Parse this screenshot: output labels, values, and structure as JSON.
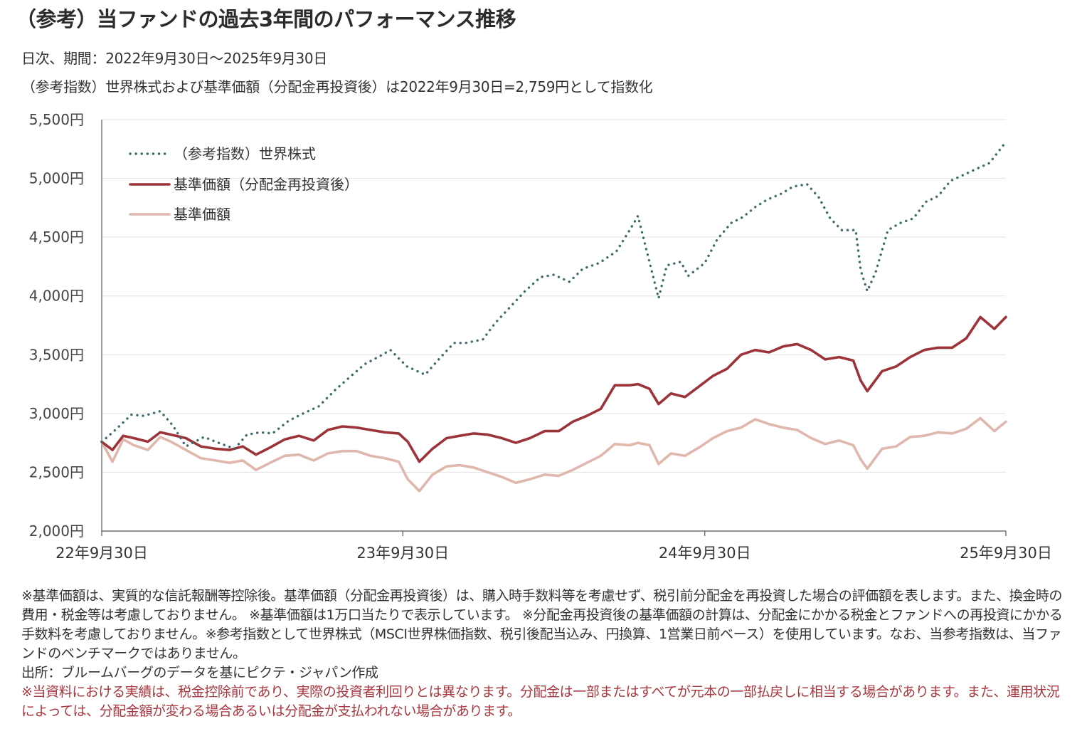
{
  "title": "（参考）当ファンドの過去3年間のパフォーマンス推移",
  "subtitle1": "日次、期間：2022年9月30日～2025年9月30日",
  "subtitle2": "（参考指数）世界株式および基準価額（分配金再投資後）は2022年9月30日=2,759円として指数化",
  "colors": {
    "world_equity": "#3f6b6e",
    "nav_reinvested": "#9b3339",
    "nav": "#dfb7ad",
    "grid": "#e2e2e2",
    "axis": "#555555",
    "note_red": "#a8373f"
  },
  "chart_data": {
    "type": "line",
    "title": "",
    "xlabel": "",
    "ylabel": "",
    "ylim": [
      2000,
      5500
    ],
    "yticks": [
      "2,000円",
      "2,500円",
      "3,000円",
      "3,500円",
      "4,000円",
      "4,500円",
      "5,000円",
      "5,500円"
    ],
    "ytick_values": [
      2000,
      2500,
      3000,
      3500,
      4000,
      4500,
      5000,
      5500
    ],
    "xticks": [
      "22年9月30日",
      "23年9月30日",
      "24年9月30日",
      "25年9月30日"
    ],
    "xtick_values": [
      "2022-09-30",
      "2023-09-30",
      "2024-09-30",
      "2025-09-30"
    ],
    "xlim": [
      "2022-09-30",
      "2025-09-30"
    ],
    "grid": true,
    "legend_position": "top-left",
    "series": [
      {
        "name": "（参考指数）世界株式",
        "style": "dotted",
        "x": [
          "2022-09-30",
          "2022-10-15",
          "2022-11-05",
          "2022-11-20",
          "2022-12-10",
          "2022-12-25",
          "2023-01-10",
          "2023-02-01",
          "2023-02-15",
          "2023-03-10",
          "2023-03-25",
          "2023-04-10",
          "2023-04-25",
          "2023-05-15",
          "2023-06-01",
          "2023-06-20",
          "2023-07-10",
          "2023-07-31",
          "2023-08-15",
          "2023-08-31",
          "2023-09-15",
          "2023-10-05",
          "2023-10-27",
          "2023-11-15",
          "2023-12-01",
          "2023-12-15",
          "2024-01-05",
          "2024-01-20",
          "2024-02-05",
          "2024-02-25",
          "2024-03-15",
          "2024-03-31",
          "2024-04-19",
          "2024-05-05",
          "2024-05-25",
          "2024-06-15",
          "2024-07-01",
          "2024-07-11",
          "2024-07-25",
          "2024-08-05",
          "2024-08-15",
          "2024-09-01",
          "2024-09-10",
          "2024-09-30",
          "2024-10-15",
          "2024-11-01",
          "2024-11-15",
          "2024-12-01",
          "2024-12-15",
          "2025-01-01",
          "2025-01-15",
          "2025-02-01",
          "2025-02-15",
          "2025-03-01",
          "2025-03-15",
          "2025-04-01",
          "2025-04-07",
          "2025-04-15",
          "2025-04-25",
          "2025-05-10",
          "2025-05-25",
          "2025-06-10",
          "2025-06-25",
          "2025-07-10",
          "2025-07-25",
          "2025-08-10",
          "2025-08-25",
          "2025-09-10",
          "2025-09-30"
        ],
        "y": [
          2759,
          2850,
          2990,
          2980,
          3020,
          2900,
          2720,
          2800,
          2760,
          2700,
          2820,
          2840,
          2830,
          2940,
          3000,
          3060,
          3200,
          3330,
          3420,
          3480,
          3540,
          3400,
          3330,
          3480,
          3600,
          3600,
          3630,
          3770,
          3890,
          4040,
          4160,
          4180,
          4120,
          4230,
          4280,
          4380,
          4560,
          4680,
          4290,
          3980,
          4260,
          4290,
          4170,
          4280,
          4480,
          4620,
          4670,
          4760,
          4820,
          4870,
          4930,
          4950,
          4840,
          4660,
          4560,
          4560,
          4220,
          4040,
          4200,
          4560,
          4620,
          4660,
          4800,
          4850,
          4980,
          5030,
          5080,
          5130,
          5310
        ]
      },
      {
        "name": "基準価額（分配金再投資後）",
        "style": "solid",
        "x": [
          "2022-09-30",
          "2022-10-13",
          "2022-10-26",
          "2022-11-08",
          "2022-11-25",
          "2022-12-10",
          "2022-12-23",
          "2023-01-10",
          "2023-01-28",
          "2023-02-15",
          "2023-03-04",
          "2023-03-20",
          "2023-04-05",
          "2023-04-22",
          "2023-05-10",
          "2023-05-27",
          "2023-06-14",
          "2023-07-01",
          "2023-07-19",
          "2023-08-05",
          "2023-08-22",
          "2023-09-08",
          "2023-09-25",
          "2023-10-06",
          "2023-10-20",
          "2023-11-05",
          "2023-11-22",
          "2023-12-08",
          "2023-12-25",
          "2024-01-11",
          "2024-01-28",
          "2024-02-14",
          "2024-03-02",
          "2024-03-20",
          "2024-04-06",
          "2024-04-23",
          "2024-05-10",
          "2024-05-27",
          "2024-06-13",
          "2024-07-01",
          "2024-07-11",
          "2024-07-25",
          "2024-08-05",
          "2024-08-20",
          "2024-09-06",
          "2024-09-23",
          "2024-10-10",
          "2024-10-27",
          "2024-11-13",
          "2024-11-30",
          "2024-12-17",
          "2025-01-03",
          "2025-01-20",
          "2025-02-06",
          "2025-02-23",
          "2025-03-12",
          "2025-03-29",
          "2025-04-07",
          "2025-04-15",
          "2025-05-03",
          "2025-05-20",
          "2025-06-06",
          "2025-06-23",
          "2025-07-10",
          "2025-07-27",
          "2025-08-13",
          "2025-08-30",
          "2025-09-16",
          "2025-09-30"
        ],
        "y": [
          2759,
          2690,
          2810,
          2790,
          2760,
          2840,
          2820,
          2790,
          2720,
          2700,
          2690,
          2720,
          2650,
          2710,
          2780,
          2810,
          2770,
          2860,
          2890,
          2880,
          2860,
          2840,
          2830,
          2760,
          2590,
          2700,
          2790,
          2810,
          2830,
          2820,
          2790,
          2750,
          2790,
          2850,
          2850,
          2930,
          2980,
          3040,
          3240,
          3240,
          3250,
          3210,
          3080,
          3170,
          3140,
          3230,
          3320,
          3380,
          3500,
          3540,
          3520,
          3570,
          3590,
          3540,
          3460,
          3480,
          3450,
          3280,
          3190,
          3360,
          3400,
          3480,
          3540,
          3560,
          3560,
          3640,
          3820,
          3720,
          3820
        ]
      },
      {
        "name": "基準価額",
        "style": "solid",
        "x": [
          "2022-09-30",
          "2022-10-13",
          "2022-10-26",
          "2022-11-08",
          "2022-11-25",
          "2022-12-10",
          "2022-12-23",
          "2023-01-10",
          "2023-01-28",
          "2023-02-15",
          "2023-03-04",
          "2023-03-20",
          "2023-04-05",
          "2023-04-22",
          "2023-05-10",
          "2023-05-27",
          "2023-06-14",
          "2023-07-01",
          "2023-07-19",
          "2023-08-05",
          "2023-08-22",
          "2023-09-08",
          "2023-09-25",
          "2023-10-06",
          "2023-10-20",
          "2023-11-05",
          "2023-11-22",
          "2023-12-08",
          "2023-12-25",
          "2024-01-11",
          "2024-01-28",
          "2024-02-14",
          "2024-03-02",
          "2024-03-20",
          "2024-04-06",
          "2024-04-23",
          "2024-05-10",
          "2024-05-27",
          "2024-06-13",
          "2024-07-01",
          "2024-07-11",
          "2024-07-25",
          "2024-08-05",
          "2024-08-20",
          "2024-09-06",
          "2024-09-23",
          "2024-10-10",
          "2024-10-27",
          "2024-11-13",
          "2024-11-30",
          "2024-12-17",
          "2025-01-03",
          "2025-01-20",
          "2025-02-06",
          "2025-02-23",
          "2025-03-12",
          "2025-03-29",
          "2025-04-07",
          "2025-04-15",
          "2025-05-03",
          "2025-05-20",
          "2025-06-06",
          "2025-06-23",
          "2025-07-10",
          "2025-07-27",
          "2025-08-13",
          "2025-08-30",
          "2025-09-16",
          "2025-09-30"
        ],
        "y": [
          2759,
          2590,
          2780,
          2730,
          2690,
          2800,
          2760,
          2690,
          2620,
          2600,
          2580,
          2600,
          2520,
          2580,
          2640,
          2650,
          2600,
          2660,
          2680,
          2680,
          2640,
          2620,
          2590,
          2440,
          2340,
          2480,
          2550,
          2560,
          2540,
          2500,
          2460,
          2410,
          2440,
          2480,
          2470,
          2520,
          2580,
          2640,
          2740,
          2730,
          2750,
          2730,
          2570,
          2660,
          2640,
          2710,
          2790,
          2850,
          2880,
          2950,
          2910,
          2880,
          2860,
          2790,
          2740,
          2770,
          2730,
          2610,
          2530,
          2700,
          2720,
          2800,
          2810,
          2840,
          2830,
          2870,
          2960,
          2850,
          2930
        ]
      }
    ]
  },
  "notes": {
    "line1": "※基準価額は、実質的な信託報酬等控除後。基準価額（分配金再投資後）は、購入時手数料等を考慮せず、税引前分配金を再投資した場合の評価額を表します。また、換金時の費用・税金等は考慮しておりません。 ※基準価額は1万口当たりで表示しています。 ※分配金再投資後の基準価額の計算は、分配金にかかる税金とファンドへの再投資にかかる手数料を考慮しておりません。※参考指数として世界株式（MSCI世界株価指数、税引後配当込み、円換算、1営業日前ベース）を使用しています。なお、当参考指数は、当ファンドのベンチマークではありません。",
    "source": "出所：ブルームバーグのデータを基にピクテ・ジャパン作成",
    "warning": "※当資料における実績は、税金控除前であり、実際の投資者利回りとは異なります。分配金は一部またはすべてが元本の一部払戻しに相当する場合があります。また、運用状況によっては、分配金額が変わる場合あるいは分配金が支払われない場合があります。"
  }
}
